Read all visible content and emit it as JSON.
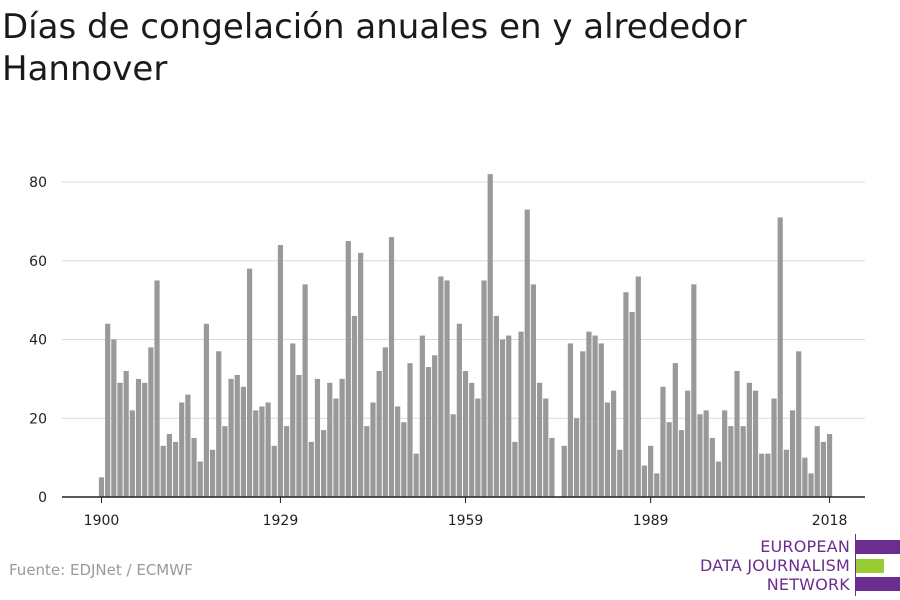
{
  "title": "Días de congelación anuales en y alrededor Hannover",
  "source": "Fuente: EDJNet / ECMWF",
  "logo": {
    "lines": [
      "EUROPEAN",
      "DATA JOURNALISM",
      "NETWORK"
    ],
    "colors": {
      "purple": "#6b2d8f",
      "green": "#99cc33"
    }
  },
  "chart_data": {
    "type": "bar",
    "title": "Días de congelación anuales en y alrededor Hannover",
    "xlabel": "",
    "ylabel": "",
    "x_start": 1900,
    "x_end": 2018,
    "x_ticks": [
      1900,
      1929,
      1959,
      1989,
      2018
    ],
    "y_ticks": [
      0,
      20,
      40,
      60,
      80
    ],
    "ylim": [
      0,
      85
    ],
    "grid": true,
    "bar_color": "#999999",
    "values": [
      5,
      44,
      40,
      29,
      32,
      22,
      30,
      29,
      38,
      55,
      13,
      16,
      14,
      24,
      26,
      15,
      9,
      44,
      12,
      37,
      18,
      30,
      31,
      28,
      58,
      22,
      23,
      24,
      13,
      64,
      18,
      39,
      31,
      54,
      14,
      30,
      17,
      29,
      25,
      30,
      65,
      46,
      62,
      18,
      24,
      32,
      38,
      66,
      23,
      19,
      34,
      11,
      41,
      33,
      36,
      56,
      55,
      21,
      44,
      32,
      29,
      25,
      55,
      82,
      46,
      40,
      41,
      14,
      42,
      73,
      54,
      29,
      25,
      15,
      0,
      13,
      39,
      20,
      37,
      42,
      41,
      39,
      24,
      27,
      12,
      52,
      47,
      56,
      8,
      13,
      6,
      28,
      19,
      34,
      17,
      27,
      54,
      21,
      22,
      15,
      9,
      22,
      18,
      32,
      18,
      29,
      27,
      11,
      11,
      25,
      71,
      12,
      22,
      37,
      10,
      6,
      18,
      14,
      16
    ]
  }
}
